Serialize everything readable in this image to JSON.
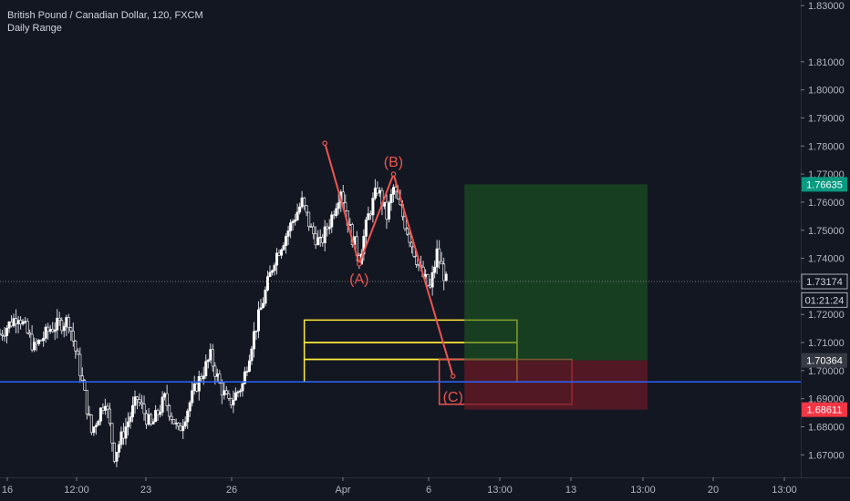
{
  "header": {
    "symbol_title": "British Pound / Canadian Dollar, 120, FXCM",
    "indicator": "Daily Range"
  },
  "colors": {
    "background": "#131722",
    "candle_up": "#ffffff",
    "wick": "#d1d4dc",
    "support_line": "#2962ff",
    "wave": "#ef5350",
    "zone": "#ffeb3b",
    "target_zone": "#1b5e20",
    "stop_zone": "#6d1b26",
    "take_profit_badge": "#089981",
    "stop_badge": "#f23645"
  },
  "chart_data": {
    "type": "candlestick",
    "y_axis": {
      "range": [
        1.662,
        1.832
      ],
      "ticks": [
        "1.83000",
        "1.81000",
        "1.80000",
        "1.79000",
        "1.78000",
        "1.77000",
        "1.76000",
        "1.75000",
        "1.74000",
        "1.72000",
        "1.71000",
        "1.70000",
        "1.69000",
        "1.68000",
        "1.67000"
      ]
    },
    "x_axis": {
      "ticks": [
        "16",
        "12:00",
        "23",
        "26",
        "Apr",
        "6",
        "13:00",
        "13",
        "13:00",
        "20",
        "13:00"
      ]
    },
    "price_badges": [
      {
        "label": "1.76635",
        "value": 1.76635,
        "kind": "take-profit"
      },
      {
        "label": "1.73174",
        "value": 1.73174,
        "kind": "last-price"
      },
      {
        "label": "01:21:24",
        "value": 1.72874,
        "kind": "countdown"
      },
      {
        "label": "1.70364",
        "value": 1.70364,
        "kind": "entry"
      },
      {
        "label": "1.68611",
        "value": 1.68611,
        "kind": "stop-loss"
      }
    ],
    "support_level": 1.696,
    "wave_labels": [
      "(A)",
      "(B)",
      "(C)"
    ],
    "wave_points": [
      {
        "day": 14.2,
        "price": 1.781
      },
      {
        "day": 15.7,
        "price": 1.738
      },
      {
        "day": 17.2,
        "price": 1.77
      },
      {
        "day": 19.8,
        "price": 1.698
      }
    ],
    "zones": [
      {
        "kind": "fib-box",
        "day0": 13.3,
        "day1": 22.6,
        "top": 1.718,
        "bottom": 1.71
      },
      {
        "kind": "fib-box",
        "day0": 13.3,
        "day1": 22.6,
        "top": 1.71,
        "bottom": 1.704
      },
      {
        "kind": "fib-box",
        "day0": 13.3,
        "day1": 22.6,
        "top": 1.704,
        "bottom": 1.696
      },
      {
        "kind": "box",
        "day0": 19.2,
        "day1": 25.0,
        "top": 1.704,
        "bottom": 1.688
      },
      {
        "kind": "long-target",
        "day0": 20.3,
        "day1": 28.3,
        "top": 1.76635,
        "bottom": 1.70364
      },
      {
        "kind": "long-stop",
        "day0": 20.3,
        "day1": 28.3,
        "top": 1.70364,
        "bottom": 1.68611
      }
    ],
    "candles_path": [
      [
        0.0,
        1.713
      ],
      [
        0.8,
        1.72
      ],
      [
        1.5,
        1.708
      ],
      [
        2.2,
        1.715
      ],
      [
        3.0,
        1.718
      ],
      [
        3.5,
        1.7
      ],
      [
        4.0,
        1.678
      ],
      [
        4.6,
        1.69
      ],
      [
        5.0,
        1.67
      ],
      [
        5.6,
        1.682
      ],
      [
        6.0,
        1.69
      ],
      [
        6.6,
        1.68
      ],
      [
        7.2,
        1.69
      ],
      [
        7.8,
        1.678
      ],
      [
        8.6,
        1.695
      ],
      [
        9.2,
        1.705
      ],
      [
        9.6,
        1.695
      ],
      [
        10.0,
        1.688
      ],
      [
        10.6,
        1.695
      ],
      [
        11.0,
        1.71
      ],
      [
        11.5,
        1.725
      ],
      [
        12.0,
        1.74
      ],
      [
        12.6,
        1.75
      ],
      [
        13.2,
        1.76
      ],
      [
        13.6,
        1.75
      ],
      [
        14.0,
        1.745
      ],
      [
        14.5,
        1.755
      ],
      [
        14.9,
        1.765
      ],
      [
        15.3,
        1.75
      ],
      [
        15.7,
        1.74
      ],
      [
        16.1,
        1.755
      ],
      [
        16.5,
        1.765
      ],
      [
        16.9,
        1.755
      ],
      [
        17.2,
        1.765
      ],
      [
        17.6,
        1.755
      ],
      [
        18.0,
        1.745
      ],
      [
        18.4,
        1.735
      ],
      [
        18.8,
        1.729
      ],
      [
        19.1,
        1.742
      ],
      [
        19.5,
        1.7317
      ]
    ],
    "day_scale": {
      "day_start": 0,
      "day_end": 35,
      "x_left": 0,
      "x_right": 878
    }
  }
}
